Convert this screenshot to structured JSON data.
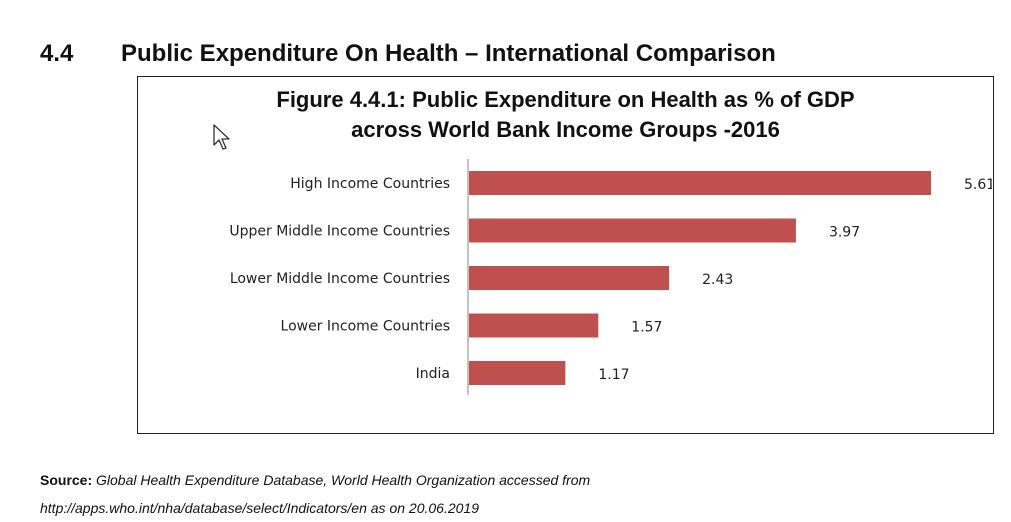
{
  "section": {
    "number": "4.4",
    "title": "Public Expenditure On Health – International Comparison"
  },
  "figure": {
    "title_line1": "Figure 4.4.1: Public Expenditure on Health as % of GDP",
    "title_line2": "across World Bank Income Groups -2016"
  },
  "chart_data": {
    "type": "bar",
    "orientation": "horizontal",
    "title": "Figure 4.4.1: Public Expenditure on Health as % of GDP across World Bank Income Groups -2016",
    "categories": [
      "High Income Countries",
      "Upper Middle Income Countries",
      "Lower Middle Income Countries",
      "Lower  Income Countries",
      "India"
    ],
    "values": [
      5.61,
      3.97,
      2.43,
      1.57,
      1.17
    ],
    "value_labels": [
      "5.61",
      "3.97",
      "2.43",
      "1.57",
      "1.17"
    ],
    "xlabel": "",
    "ylabel": "",
    "xlim": [
      0,
      5.61
    ],
    "grid": false,
    "legend": "none",
    "bar_color": "#c0504d"
  },
  "source": {
    "label": "Source:",
    "line1": "Global Health Expenditure Database, World Health Organization accessed from",
    "line2": "http://apps.who.int/nha/database/select/Indicators/en as on 20.06.2019"
  },
  "icons": {
    "cursor": "mouse-pointer-icon"
  }
}
